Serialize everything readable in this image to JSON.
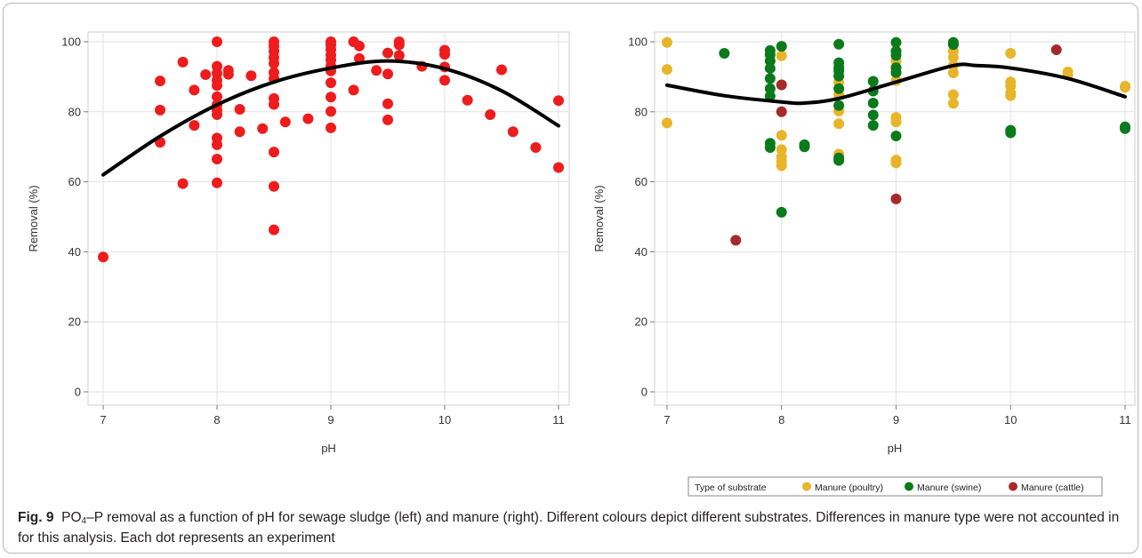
{
  "chart_data": [
    {
      "type": "scatter",
      "xlabel": "pH",
      "ylabel": "Removal (%)",
      "xlim": [
        7,
        11
      ],
      "ylim": [
        0,
        100
      ],
      "xticks": [
        "7",
        "8",
        "9",
        "10",
        "11"
      ],
      "yticks": [
        "0",
        "20",
        "40",
        "60",
        "80",
        "100"
      ],
      "grid": true,
      "series": [
        {
          "color": "#ee1c1c",
          "points": [
            [
              7.0,
              38.5
            ],
            [
              7.5,
              88.8
            ],
            [
              7.5,
              80.5
            ],
            [
              7.5,
              71.3
            ],
            [
              7.7,
              94.2
            ],
            [
              7.7,
              59.5
            ],
            [
              7.8,
              86.2
            ],
            [
              7.8,
              76.1
            ],
            [
              7.9,
              90.6
            ],
            [
              8.0,
              100
            ],
            [
              8.0,
              93
            ],
            [
              8.0,
              91
            ],
            [
              8.0,
              89
            ],
            [
              8.0,
              87.5
            ],
            [
              8.0,
              84.3
            ],
            [
              8.0,
              82
            ],
            [
              8.0,
              80.5
            ],
            [
              8.0,
              79.2
            ],
            [
              8.0,
              72.5
            ],
            [
              8.0,
              70.6
            ],
            [
              8.0,
              66.5
            ],
            [
              8.0,
              59.7
            ],
            [
              8.1,
              91.8
            ],
            [
              8.1,
              90.7
            ],
            [
              8.2,
              80.7
            ],
            [
              8.2,
              74.3
            ],
            [
              8.3,
              90.3
            ],
            [
              8.4,
              75.2
            ],
            [
              8.5,
              100
            ],
            [
              8.5,
              98.8
            ],
            [
              8.5,
              97.3
            ],
            [
              8.5,
              95.5
            ],
            [
              8.5,
              93.8
            ],
            [
              8.5,
              91.2
            ],
            [
              8.5,
              89.5
            ],
            [
              8.5,
              83.8
            ],
            [
              8.5,
              82.1
            ],
            [
              8.5,
              68.5
            ],
            [
              8.5,
              58.7
            ],
            [
              8.5,
              46.3
            ],
            [
              8.6,
              77.1
            ],
            [
              8.8,
              78.0
            ],
            [
              9.0,
              100
            ],
            [
              9.0,
              99.1
            ],
            [
              9.0,
              97.8
            ],
            [
              9.0,
              96.2
            ],
            [
              9.0,
              94.8
            ],
            [
              9.0,
              93.1
            ],
            [
              9.0,
              91.7
            ],
            [
              9.0,
              88.3
            ],
            [
              9.0,
              84.2
            ],
            [
              9.0,
              80.1
            ],
            [
              9.0,
              75.4
            ],
            [
              9.2,
              100
            ],
            [
              9.2,
              86.2
            ],
            [
              9.25,
              98.8
            ],
            [
              9.25,
              95.2
            ],
            [
              9.4,
              91.8
            ],
            [
              9.5,
              96.8
            ],
            [
              9.5,
              90.8
            ],
            [
              9.5,
              82.3
            ],
            [
              9.5,
              77.7
            ],
            [
              9.6,
              100
            ],
            [
              9.6,
              99.1
            ],
            [
              9.6,
              96.1
            ],
            [
              9.8,
              93.0
            ],
            [
              10.0,
              97.6
            ],
            [
              10.0,
              96.4
            ],
            [
              10.0,
              92.8
            ],
            [
              10.0,
              89.0
            ],
            [
              10.2,
              83.3
            ],
            [
              10.4,
              79.2
            ],
            [
              10.5,
              92.0
            ],
            [
              10.6,
              74.3
            ],
            [
              10.8,
              69.8
            ],
            [
              11.0,
              83.2
            ],
            [
              11.0,
              64.1
            ]
          ]
        }
      ],
      "fit_curve": [
        [
          7.0,
          62
        ],
        [
          7.5,
          73
        ],
        [
          8.0,
          82
        ],
        [
          8.5,
          88.5
        ],
        [
          9.0,
          92.5
        ],
        [
          9.5,
          94.5
        ],
        [
          10.0,
          92.3
        ],
        [
          10.5,
          86
        ],
        [
          11.0,
          76
        ]
      ]
    },
    {
      "type": "scatter",
      "xlabel": "pH",
      "ylabel": "Removal (%)",
      "xlim": [
        7,
        11
      ],
      "ylim": [
        0,
        100
      ],
      "xticks": [
        "7",
        "8",
        "9",
        "10",
        "11"
      ],
      "yticks": [
        "0",
        "20",
        "40",
        "60",
        "80",
        "100"
      ],
      "grid": true,
      "legend": {
        "title": "Type of substrate",
        "position": "bottom"
      },
      "series": [
        {
          "name": "Manure (poultry)",
          "color": "#e8b52a",
          "points": [
            [
              7.0,
              99.8
            ],
            [
              7.0,
              92.1
            ],
            [
              7.0,
              76.8
            ],
            [
              8.0,
              96
            ],
            [
              8.0,
              73.3
            ],
            [
              8.0,
              69.2
            ],
            [
              8.0,
              67.1
            ],
            [
              8.0,
              65.8
            ],
            [
              8.0,
              64.6
            ],
            [
              8.5,
              88.4
            ],
            [
              8.5,
              84.9
            ],
            [
              8.5,
              80.2
            ],
            [
              8.5,
              76.6
            ],
            [
              8.5,
              67.9
            ],
            [
              9.0,
              94.5
            ],
            [
              9.0,
              91.1
            ],
            [
              9.0,
              88.9
            ],
            [
              9.0,
              78.4
            ],
            [
              9.0,
              77.1
            ],
            [
              9.0,
              66.2
            ],
            [
              9.0,
              65.4
            ],
            [
              9.5,
              97.3
            ],
            [
              9.5,
              95.6
            ],
            [
              9.5,
              93.2
            ],
            [
              9.5,
              91.1
            ],
            [
              9.5,
              84.9
            ],
            [
              9.5,
              82.4
            ],
            [
              10.0,
              96.7
            ],
            [
              10.0,
              88.5
            ],
            [
              10.0,
              87.3
            ],
            [
              10.0,
              85.4
            ],
            [
              10.0,
              84.6
            ],
            [
              10.5,
              91.4
            ],
            [
              10.5,
              90.6
            ],
            [
              11.0,
              87.3
            ],
            [
              11.0,
              87.0
            ]
          ]
        },
        {
          "name": "Manure (swine)",
          "color": "#0b7a1b",
          "points": [
            [
              7.5,
              96.7
            ],
            [
              7.9,
              97.5
            ],
            [
              7.9,
              96.3
            ],
            [
              7.9,
              94.5
            ],
            [
              7.9,
              92.4
            ],
            [
              7.9,
              89.5
            ],
            [
              7.9,
              86.6
            ],
            [
              7.9,
              84.5
            ],
            [
              7.9,
              71.0
            ],
            [
              7.9,
              69.8
            ],
            [
              8.0,
              98.7
            ],
            [
              8.0,
              51.3
            ],
            [
              8.2,
              70.6
            ],
            [
              8.2,
              70.0
            ],
            [
              8.5,
              99.3
            ],
            [
              8.5,
              94.0
            ],
            [
              8.5,
              92.6
            ],
            [
              8.5,
              91.7
            ],
            [
              8.5,
              90.2
            ],
            [
              8.5,
              86.6
            ],
            [
              8.5,
              81.8
            ],
            [
              8.5,
              66.8
            ],
            [
              8.5,
              66.1
            ],
            [
              8.8,
              88.7
            ],
            [
              8.8,
              85.9
            ],
            [
              8.8,
              82.5
            ],
            [
              8.8,
              79.1
            ],
            [
              8.8,
              76.1
            ],
            [
              9.0,
              99.8
            ],
            [
              9.0,
              97.3
            ],
            [
              9.0,
              96.1
            ],
            [
              9.0,
              92.6
            ],
            [
              9.0,
              91.2
            ],
            [
              9.0,
              73.1
            ],
            [
              9.5,
              99.8
            ],
            [
              9.5,
              99.2
            ],
            [
              10.0,
              74.7
            ],
            [
              10.0,
              74.0
            ],
            [
              11.0,
              75.7
            ],
            [
              11.0,
              75.2
            ]
          ]
        },
        {
          "name": "Manure (cattle)",
          "color": "#a52a2a",
          "points": [
            [
              7.6,
              43.3
            ],
            [
              8.0,
              87.7
            ],
            [
              8.0,
              80.0
            ],
            [
              9.0,
              55.1
            ],
            [
              10.4,
              97.7
            ]
          ]
        }
      ],
      "fit_curve": [
        [
          7.0,
          87.6
        ],
        [
          7.5,
          84.6
        ],
        [
          8.0,
          82.8
        ],
        [
          8.2,
          82.5
        ],
        [
          8.5,
          83.8
        ],
        [
          9.0,
          88.5
        ],
        [
          9.5,
          93.2
        ],
        [
          9.7,
          93.2
        ],
        [
          10.0,
          92.5
        ],
        [
          10.5,
          89.5
        ],
        [
          11.0,
          84.3
        ]
      ]
    }
  ],
  "caption": {
    "fig_label": "Fig. 9",
    "formula_pre": "PO",
    "formula_sub": "4",
    "text": "–P removal as a function of pH for sewage sludge (left) and manure (right). Different colours depict different substrates. Differences in manure type were not accounted in for this analysis. Each dot represents an experiment"
  }
}
